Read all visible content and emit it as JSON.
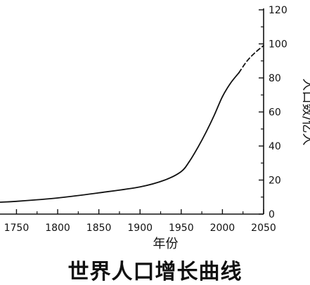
{
  "chart_data": {
    "type": "line",
    "title": "世界人口增长曲线",
    "xlabel": "年份",
    "ylabel": "人口数/亿人",
    "xlim": [
      1730,
      2050
    ],
    "ylim": [
      0,
      120
    ],
    "x_ticks": [
      1750,
      1800,
      1850,
      1900,
      1950,
      2000,
      2050
    ],
    "y_ticks": [
      0,
      20,
      40,
      60,
      80,
      100,
      120
    ],
    "grid": false,
    "series": [
      {
        "style": "solid",
        "x": [
          1730,
          1750,
          1800,
          1850,
          1900,
          1930,
          1950,
          1960,
          1970,
          1980,
          1990,
          2000,
          2010,
          2020
        ],
        "y": [
          7,
          7.5,
          9.5,
          12.5,
          16,
          20,
          25,
          31,
          39,
          48,
          58,
          69,
          77,
          83
        ]
      },
      {
        "style": "dashed",
        "x": [
          2020,
          2030,
          2040,
          2050
        ],
        "y": [
          83,
          90,
          95,
          99
        ]
      }
    ]
  }
}
